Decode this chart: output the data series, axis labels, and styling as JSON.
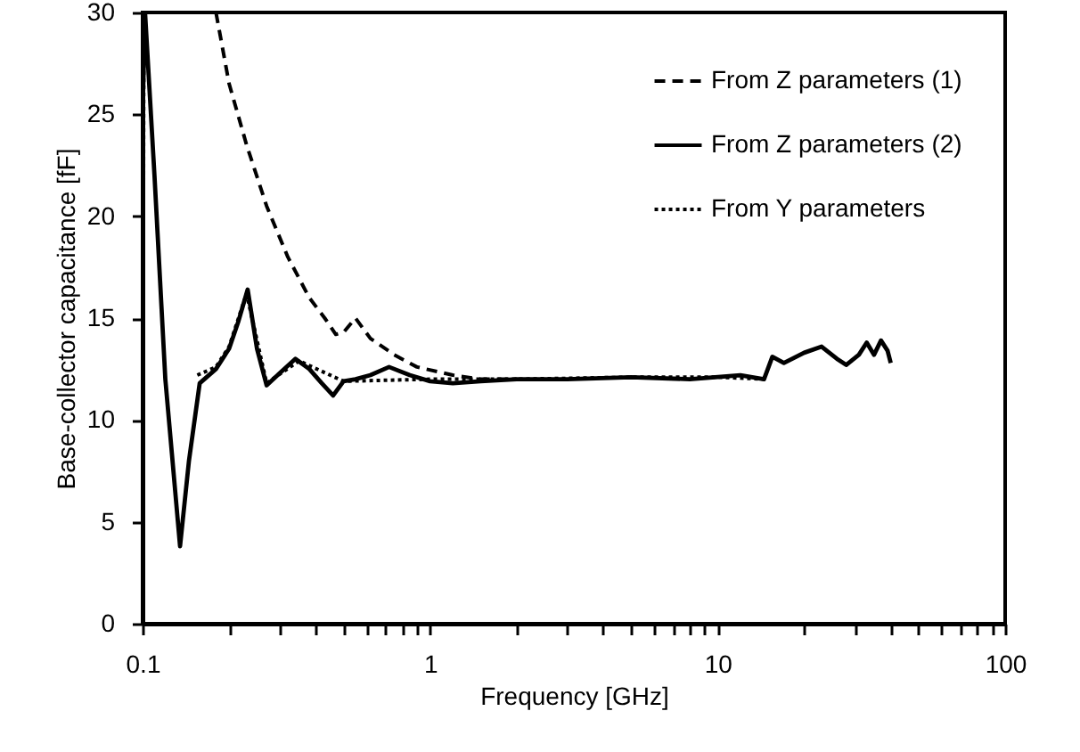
{
  "chart_data": {
    "type": "line",
    "xlabel": "Frequency [GHz]",
    "ylabel": "Base-collector capacitance [fF]",
    "log": "x",
    "xlim": [
      0.1,
      100
    ],
    "ylim": [
      0,
      30
    ],
    "xticks": [
      0.1,
      {
        "value": 0.2,
        "label": null
      },
      {
        "value": 0.3,
        "label": null
      },
      {
        "value": 0.4,
        "label": null
      },
      {
        "value": 0.5,
        "label": null
      },
      {
        "value": 0.6,
        "label": null
      },
      {
        "value": 0.7,
        "label": null
      },
      {
        "value": 0.8,
        "label": null
      },
      {
        "value": 0.9,
        "label": null
      },
      1,
      {
        "value": 2,
        "label": null
      },
      {
        "value": 3,
        "label": null
      },
      {
        "value": 4,
        "label": null
      },
      {
        "value": 5,
        "label": null
      },
      {
        "value": 6,
        "label": null
      },
      {
        "value": 7,
        "label": null
      },
      {
        "value": 8,
        "label": null
      },
      {
        "value": 9,
        "label": null
      },
      10,
      {
        "value": 20,
        "label": null
      },
      {
        "value": 30,
        "label": null
      },
      {
        "value": 40,
        "label": null
      },
      {
        "value": 50,
        "label": null
      },
      {
        "value": 60,
        "label": null
      },
      {
        "value": 70,
        "label": null
      },
      {
        "value": 80,
        "label": null
      },
      {
        "value": 90,
        "label": null
      },
      100
    ],
    "yticks": [
      0,
      5,
      10,
      15,
      20,
      25,
      30
    ],
    "grid": false,
    "legend": "top right",
    "marker": "none",
    "series": [
      {
        "name": "From Z parameters (1)",
        "color": "#000000",
        "line_style": "dashed",
        "x": [
          0.18,
          0.2,
          0.23,
          0.27,
          0.32,
          0.38,
          0.43,
          0.47,
          0.5,
          0.55,
          0.62,
          0.75,
          0.9,
          1.2,
          1.5,
          2
        ],
        "values": [
          30,
          26.5,
          23.5,
          20.5,
          18.0,
          16.0,
          15.0,
          14.2,
          14.3,
          15.0,
          14.0,
          13.2,
          12.6,
          12.2,
          12.0,
          12.0
        ]
      },
      {
        "name": "From Z parameters (2)",
        "color": "#000000",
        "line_style": "solid",
        "x": [
          0.1,
          0.102,
          0.11,
          0.12,
          0.135,
          0.145,
          0.158,
          0.18,
          0.2,
          0.215,
          0.232,
          0.25,
          0.27,
          0.3,
          0.34,
          0.38,
          0.42,
          0.46,
          0.5,
          0.55,
          0.62,
          0.72,
          0.85,
          1.0,
          1.2,
          1.5,
          2,
          3,
          5,
          8,
          12,
          14.5,
          15.5,
          17,
          20,
          23,
          26,
          28,
          31,
          33,
          35,
          37,
          39,
          40
        ],
        "values": [
          25,
          30,
          22,
          12,
          3.8,
          8,
          11.8,
          12.5,
          13.5,
          14.8,
          16.4,
          13.5,
          11.7,
          12.3,
          13.0,
          12.5,
          11.8,
          11.2,
          11.9,
          12.0,
          12.2,
          12.6,
          12.2,
          11.9,
          11.8,
          11.9,
          12.0,
          12.0,
          12.1,
          12.0,
          12.2,
          12.0,
          13.1,
          12.8,
          13.3,
          13.6,
          13.0,
          12.7,
          13.2,
          13.8,
          13.2,
          13.9,
          13.4,
          12.8
        ]
      },
      {
        "name": "From Y parameters",
        "color": "#000000",
        "line_style": "dotted",
        "x": [
          0.1,
          0.101,
          0.103,
          0.155,
          0.18,
          0.2,
          0.23,
          0.27,
          0.35,
          0.5,
          1,
          2,
          5,
          10,
          15
        ],
        "values": [
          0,
          30,
          null,
          12.2,
          12.6,
          13.6,
          16.2,
          11.8,
          12.9,
          11.9,
          12.0,
          12.0,
          12.1,
          12.1,
          12.0
        ]
      }
    ]
  }
}
